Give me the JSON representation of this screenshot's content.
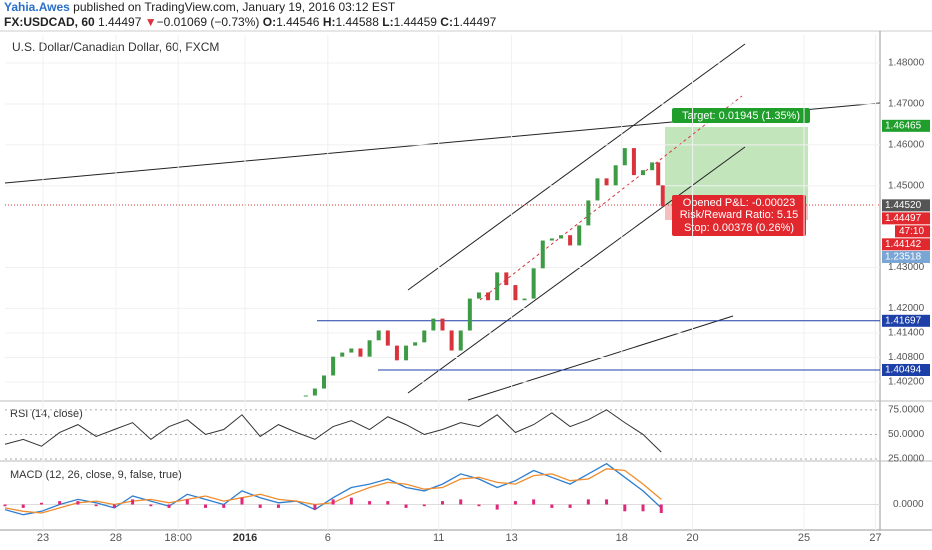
{
  "header": {
    "author": "Yahia.Awes",
    "published": "published on TradingView.com, January 19, 2016 03:12 EST",
    "symbol": "FX:USDCAD, 60",
    "last": "1.44497",
    "arrow": "▼",
    "change": "−0.01069 (−0.73%)",
    "o_label": "O:",
    "open": "1.44546",
    "h_label": "H:",
    "high": "1.44588",
    "l_label": "L:",
    "low": "1.44459",
    "c_label": "C:",
    "close": "1.44497"
  },
  "chart_data": [
    {
      "type": "candlestick",
      "title": "U.S. Dollar/Canadian Dollar, 60, FXCM",
      "x": [
        198,
        204,
        210,
        216,
        222,
        228,
        234,
        240,
        246,
        252,
        258,
        264,
        270,
        276,
        282,
        288,
        294,
        300,
        306,
        312,
        318,
        324,
        330,
        336,
        342,
        348,
        354,
        360,
        366,
        372,
        378,
        384,
        390,
        396,
        402,
        408,
        414,
        420,
        426,
        430,
        433
      ],
      "close": [
        1.3987,
        1.4004,
        1.4036,
        1.4082,
        1.4092,
        1.4102,
        1.4082,
        1.4122,
        1.4146,
        1.4109,
        1.4073,
        1.4109,
        1.4117,
        1.4146,
        1.4175,
        1.4146,
        1.4097,
        1.4146,
        1.4224,
        1.4239,
        1.422,
        1.4288,
        1.4257,
        1.422,
        1.4224,
        1.4298,
        1.4366,
        1.4371,
        1.4379,
        1.4354,
        1.4403,
        1.4464,
        1.4518,
        1.4501,
        1.455,
        1.4592,
        1.4526,
        1.4538,
        1.4557,
        1.4501,
        1.44497
      ],
      "up_color": "#3d9a45",
      "down_color": "#d9333c",
      "xlim": [
        0,
        576
      ],
      "ylim": [
        1.3976,
        1.48686
      ],
      "xticks": [
        {
          "value": 25,
          "label": "23"
        },
        {
          "value": 73,
          "label": "28"
        },
        {
          "value": 114,
          "label": "18:00"
        },
        {
          "value": 158,
          "label": "2016"
        },
        {
          "value": 212.5,
          "label": "6"
        },
        {
          "value": 285.5,
          "label": "11"
        },
        {
          "value": 333.5,
          "label": "13"
        },
        {
          "value": 406,
          "label": "18"
        },
        {
          "value": 452.6,
          "label": "20"
        },
        {
          "value": 526,
          "label": "25"
        },
        {
          "value": 573,
          "label": "27"
        }
      ],
      "yticks": [
        {
          "value": 1.48,
          "label": "1.48000"
        },
        {
          "value": 1.47,
          "label": "1.47000"
        },
        {
          "value": 1.46,
          "label": "1.46000"
        },
        {
          "value": 1.45,
          "label": "1.45000"
        },
        {
          "value": 1.43,
          "label": "1.43000"
        },
        {
          "value": 1.42,
          "label": "1.42000"
        },
        {
          "value": 1.414,
          "label": "1.41400"
        },
        {
          "value": 1.408,
          "label": "1.40800"
        },
        {
          "value": 1.402,
          "label": "1.40200"
        }
      ],
      "levels": [
        1.41697,
        1.40494
      ],
      "price_tags": [
        {
          "value": 1.46465,
          "color": "#1f9e2c"
        },
        {
          "value": 1.4452,
          "label": "1.44520",
          "color": "#555555"
        },
        {
          "value": 1.44497,
          "color": "#e0282e"
        },
        {
          "value": 1.44142,
          "color": "#e0282e"
        },
        {
          "value": 1.41697,
          "color": "#1c3fa8"
        },
        {
          "value": 1.40494,
          "color": "#1c3fa8"
        }
      ],
      "countdown": "47:10",
      "other_tag": "1.23518",
      "position": {
        "target": "Target: 0.01945 (1.35%)",
        "pnl": "Opened P&L: -0.00023",
        "ratio": "Risk/Reward Ratio: 5.15",
        "stop": "Stop: 0.00378 (0.26%)"
      }
    },
    {
      "type": "line",
      "title": "RSI (14, close)",
      "x_step": 12,
      "values": [
        40,
        45,
        38,
        52,
        60,
        48,
        55,
        62,
        45,
        58,
        65,
        50,
        55,
        70,
        48,
        60,
        52,
        45,
        58,
        64,
        55,
        68,
        60,
        50,
        55,
        62,
        58,
        70,
        52,
        60,
        72,
        58,
        65,
        75,
        62,
        50,
        32
      ],
      "color": "#333333",
      "ylim": [
        24,
        83
      ],
      "yticks": [
        {
          "value": 75,
          "label": "75.0000"
        },
        {
          "value": 50,
          "label": "50.0000"
        },
        {
          "value": 25,
          "label": "25.0000"
        }
      ]
    },
    {
      "type": "macd",
      "title": "MACD (12, 26, close, 9, false, true)",
      "x_step": 12,
      "series": [
        {
          "name": "MACD",
          "color": "#2f7fd0",
          "values": [
            -0.0003,
            -0.0006,
            -0.0004,
            0.0,
            0.0003,
            0.0001,
            -0.0002,
            0.0005,
            0.0002,
            -0.0001,
            0.0006,
            0.0003,
            0.0,
            0.0008,
            0.0004,
            0.0001,
            0.0002,
            -0.0003,
            0.0004,
            0.001,
            0.0012,
            0.0015,
            0.001,
            0.0008,
            0.0012,
            0.0018,
            0.0015,
            0.001,
            0.0014,
            0.002,
            0.0016,
            0.0012,
            0.0018,
            0.0024,
            0.0016,
            0.0008,
            -0.0002
          ]
        },
        {
          "name": "Signal",
          "color": "#f08c2e",
          "values": [
            -0.0002,
            -0.0004,
            -0.0005,
            -0.0002,
            0.0001,
            0.0002,
            0.0,
            0.0002,
            0.0003,
            0.0001,
            0.0003,
            0.0005,
            0.0002,
            0.0004,
            0.0006,
            0.0003,
            0.0002,
            0.0,
            0.0001,
            0.0006,
            0.001,
            0.0013,
            0.0012,
            0.0009,
            0.001,
            0.0015,
            0.0016,
            0.0013,
            0.0012,
            0.0017,
            0.0018,
            0.0014,
            0.0015,
            0.0021,
            0.002,
            0.0012,
            0.0003
          ]
        },
        {
          "name": "Histogram",
          "color": "#e0287a",
          "values": [
            -0.0001,
            -0.0002,
            0.0001,
            0.0002,
            0.0002,
            -0.0001,
            -0.0002,
            0.0003,
            -0.0001,
            -0.0002,
            0.0003,
            -0.0002,
            -0.0002,
            0.0004,
            -0.0002,
            -0.0002,
            0.0,
            -0.0003,
            0.0003,
            0.0004,
            0.0002,
            0.0002,
            -0.0002,
            -0.0001,
            0.0002,
            0.0003,
            -0.0001,
            -0.0003,
            0.0002,
            0.0003,
            -0.0002,
            -0.0002,
            0.0003,
            0.0003,
            -0.0004,
            -0.0004,
            -0.0005
          ]
        }
      ],
      "ylim": [
        -0.0015,
        0.0025
      ],
      "yticks": [
        {
          "value": 0,
          "label": "0.0000"
        }
      ]
    }
  ]
}
